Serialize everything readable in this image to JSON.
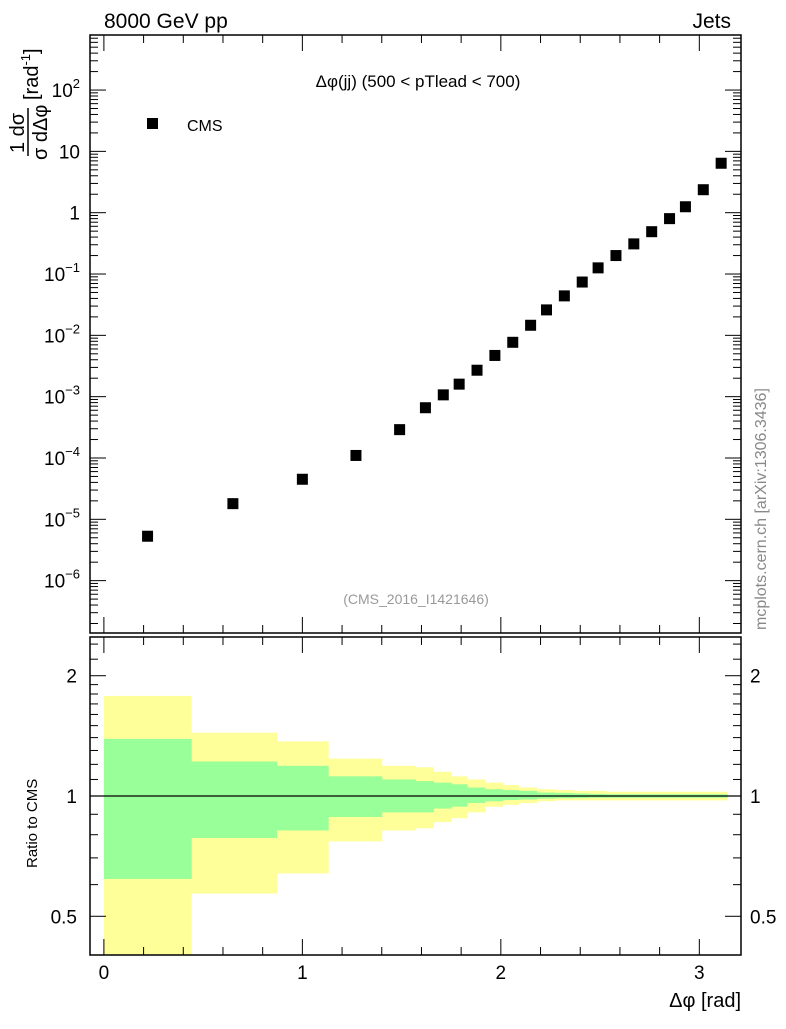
{
  "header": {
    "left": "8000 GeV pp",
    "right": "Jets"
  },
  "side_label": "mcplots.cern.ch [arXiv:1306.3436]",
  "analysis_label": "(CMS_2016_I1421646)",
  "chart_data": [
    {
      "type": "scatter",
      "title": "Δφ(jj) (500 < pTlead <  700)",
      "ylabel": {
        "num": "1 dσ",
        "den": "σ dΔφ",
        "unit": "[rad",
        "unit_exp": "-1",
        "unit_close": "]"
      },
      "yscale": "log",
      "ylim": [
        1.4e-07,
        790
      ],
      "xlim": [
        -0.07,
        3.21
      ],
      "ytick_labels": [
        {
          "v": 100,
          "base": "10",
          "exp": "2"
        },
        {
          "v": 10,
          "base": "10",
          "exp": ""
        },
        {
          "v": 1,
          "base": "1",
          "exp": ""
        },
        {
          "v": 0.1,
          "base": "10",
          "exp": "−1"
        },
        {
          "v": 0.01,
          "base": "10",
          "exp": "−2"
        },
        {
          "v": 0.001,
          "base": "10",
          "exp": "−3"
        },
        {
          "v": 0.0001,
          "base": "10",
          "exp": "−4"
        },
        {
          "v": 1e-05,
          "base": "10",
          "exp": "−5"
        },
        {
          "v": 1e-06,
          "base": "10",
          "exp": "−6"
        }
      ],
      "legend": [
        {
          "label": "CMS",
          "marker": "square",
          "color": "#000000",
          "position": "top-left"
        }
      ],
      "series": [
        {
          "name": "CMS",
          "x": [
            0.22,
            0.65,
            1.0,
            1.27,
            1.49,
            1.62,
            1.71,
            1.79,
            1.88,
            1.97,
            2.06,
            2.15,
            2.23,
            2.32,
            2.41,
            2.49,
            2.58,
            2.67,
            2.76,
            2.85,
            2.93,
            3.02,
            3.11
          ],
          "y": [
            5.3e-06,
            1.8e-05,
            4.5e-05,
            0.00011,
            0.00029,
            0.00066,
            0.00107,
            0.0016,
            0.0027,
            0.0047,
            0.0077,
            0.0146,
            0.026,
            0.044,
            0.074,
            0.126,
            0.2,
            0.31,
            0.49,
            0.8,
            1.25,
            2.37,
            6.4
          ]
        }
      ]
    },
    {
      "type": "area",
      "ylabel": "Ratio to CMS",
      "xlabel": "Δφ [rad]",
      "yscale": "log",
      "ylim": [
        0.4,
        2.5
      ],
      "xlim": [
        -0.07,
        3.21
      ],
      "xticks": [
        0,
        1,
        2,
        3
      ],
      "ytick_labels": [
        {
          "v": 2,
          "label": "2"
        },
        {
          "v": 1,
          "label": "1"
        },
        {
          "v": 0.5,
          "label": "0.5"
        }
      ],
      "bin_edges": [
        0,
        0.44,
        0.87,
        1.13,
        1.4,
        1.57,
        1.66,
        1.75,
        1.83,
        1.92,
        2.01,
        2.09,
        2.18,
        2.27,
        2.36,
        2.44,
        2.53,
        2.62,
        2.71,
        2.79,
        2.88,
        2.97,
        3.05,
        3.14
      ],
      "yellow_band": {
        "color": "#ffff99",
        "upper": [
          1.78,
          1.44,
          1.37,
          1.24,
          1.19,
          1.18,
          1.15,
          1.12,
          1.1,
          1.08,
          1.065,
          1.05,
          1.04,
          1.035,
          1.03,
          1.03,
          1.025,
          1.025,
          1.025,
          1.025,
          1.025,
          1.025,
          1.025
        ],
        "lower": [
          0.3,
          0.57,
          0.64,
          0.77,
          0.82,
          0.83,
          0.86,
          0.88,
          0.91,
          0.94,
          0.95,
          0.96,
          0.97,
          0.975,
          0.975,
          0.975,
          0.975,
          0.975,
          0.975,
          0.975,
          0.975,
          0.975,
          0.975
        ]
      },
      "green_band": {
        "color": "#99ff99",
        "upper": [
          1.39,
          1.22,
          1.19,
          1.12,
          1.1,
          1.09,
          1.08,
          1.07,
          1.05,
          1.04,
          1.035,
          1.03,
          1.02,
          1.018,
          1.015,
          1.012,
          1.01,
          1.01,
          1.01,
          1.01,
          1.01,
          1.01,
          1.01
        ],
        "lower": [
          0.62,
          0.785,
          0.82,
          0.886,
          0.91,
          0.91,
          0.93,
          0.94,
          0.96,
          0.97,
          0.977,
          0.98,
          0.985,
          0.987,
          0.988,
          0.99,
          0.99,
          0.99,
          0.99,
          0.99,
          0.99,
          0.99,
          0.99
        ]
      },
      "reference_line": 1
    }
  ]
}
